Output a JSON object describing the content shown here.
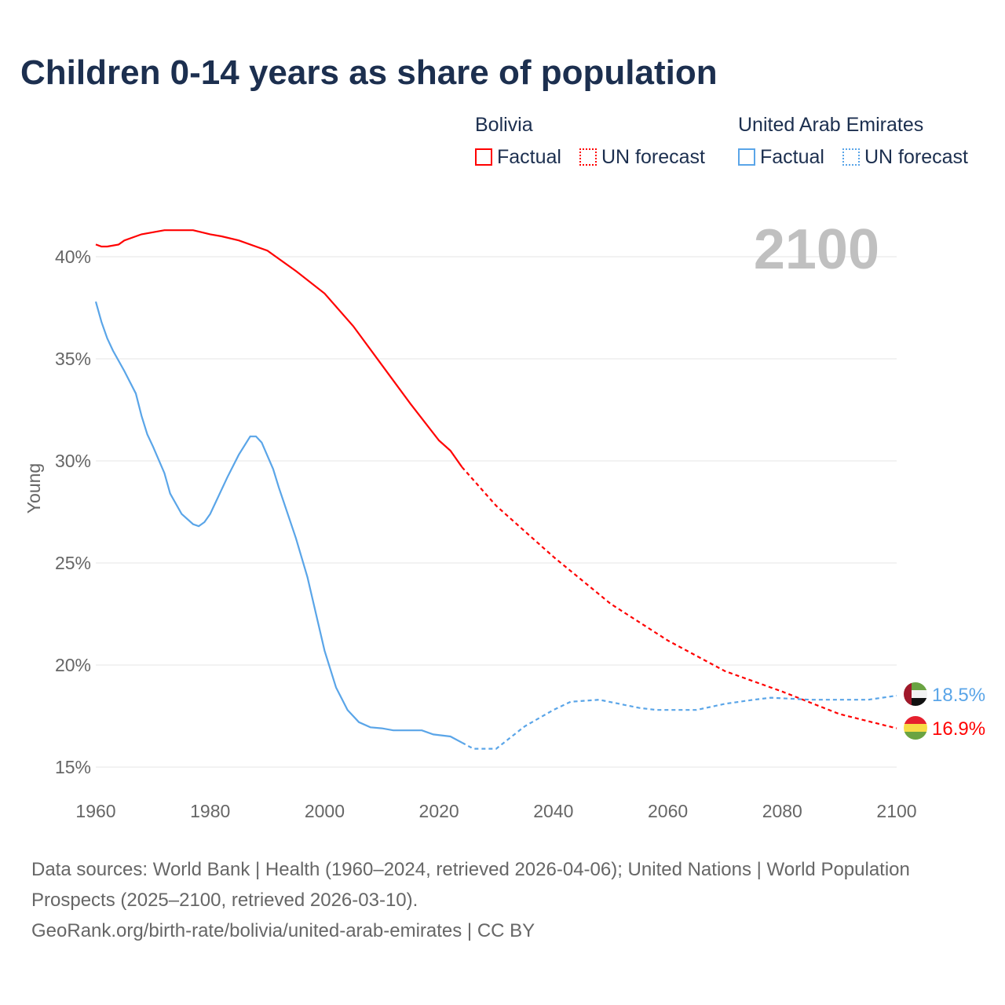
{
  "chart_data": {
    "type": "line",
    "title": "Children 0-14 years as share of population",
    "ylabel": "Young",
    "xlabel": "",
    "xlim": [
      1960,
      2100
    ],
    "ylim": [
      15,
      41.5
    ],
    "x_ticks": [
      "1960",
      "1980",
      "2000",
      "2020",
      "2040",
      "2060",
      "2080",
      "2100"
    ],
    "y_ticks": [
      "15%",
      "20%",
      "25%",
      "30%",
      "35%",
      "40%"
    ],
    "y_tick_values": [
      15,
      20,
      25,
      30,
      35,
      40
    ],
    "year_label": "2100",
    "factual_end_year": 2024,
    "legend": {
      "groups": [
        {
          "name": "Bolivia",
          "color": "#ff0000",
          "items": [
            "Factual",
            "UN forecast"
          ]
        },
        {
          "name": "United Arab Emirates",
          "color": "#5aa5e8",
          "items": [
            "Factual",
            "UN forecast"
          ]
        }
      ],
      "placement": "top-right"
    },
    "series": [
      {
        "name": "Bolivia",
        "color": "#ff0000",
        "end_label": "16.9%",
        "x": [
          1960,
          1961,
          1962,
          1964,
          1965,
          1968,
          1970,
          1972,
          1975,
          1977,
          1980,
          1982,
          1985,
          1990,
          1995,
          2000,
          2005,
          2010,
          2015,
          2020,
          2022,
          2024,
          2030,
          2040,
          2050,
          2060,
          2070,
          2080,
          2090,
          2100
        ],
        "y": [
          40.6,
          40.5,
          40.5,
          40.6,
          40.8,
          41.1,
          41.2,
          41.3,
          41.3,
          41.3,
          41.1,
          41.0,
          40.8,
          40.3,
          39.3,
          38.2,
          36.6,
          34.7,
          32.8,
          31.0,
          30.5,
          29.7,
          27.8,
          25.3,
          23.0,
          21.2,
          19.7,
          18.7,
          17.6,
          16.9
        ]
      },
      {
        "name": "United Arab Emirates",
        "color": "#5aa5e8",
        "end_label": "18.5%",
        "x": [
          1960,
          1961,
          1962,
          1963,
          1965,
          1967,
          1968,
          1969,
          1970,
          1972,
          1973,
          1975,
          1977,
          1978,
          1979,
          1980,
          1981,
          1983,
          1985,
          1987,
          1988,
          1989,
          1991,
          1992,
          1995,
          1997,
          2000,
          2002,
          2004,
          2006,
          2008,
          2010,
          2012,
          2017,
          2019,
          2022,
          2024,
          2026,
          2030,
          2035,
          2040,
          2043,
          2048,
          2055,
          2058,
          2065,
          2070,
          2075,
          2078,
          2085,
          2095,
          2100
        ],
        "y": [
          37.8,
          36.8,
          36.0,
          35.4,
          34.4,
          33.3,
          32.2,
          31.3,
          30.7,
          29.4,
          28.4,
          27.4,
          26.9,
          26.8,
          27.0,
          27.4,
          28.0,
          29.2,
          30.3,
          31.2,
          31.2,
          30.9,
          29.6,
          28.7,
          26.2,
          24.3,
          20.7,
          18.9,
          17.8,
          17.2,
          16.95,
          16.9,
          16.8,
          16.8,
          16.6,
          16.5,
          16.2,
          15.9,
          15.9,
          17.0,
          17.8,
          18.2,
          18.3,
          17.9,
          17.8,
          17.8,
          18.1,
          18.3,
          18.4,
          18.3,
          18.3,
          18.5
        ]
      }
    ]
  },
  "sources": {
    "line1": "Data sources: World Bank | Health (1960–2024, retrieved 2026-04-06); United Nations | World Population Prospects (2025–2100, retrieved 2026-03-10).",
    "line2": "GeoRank.org/birth-rate/bolivia/united-arab-emirates | CC BY"
  }
}
